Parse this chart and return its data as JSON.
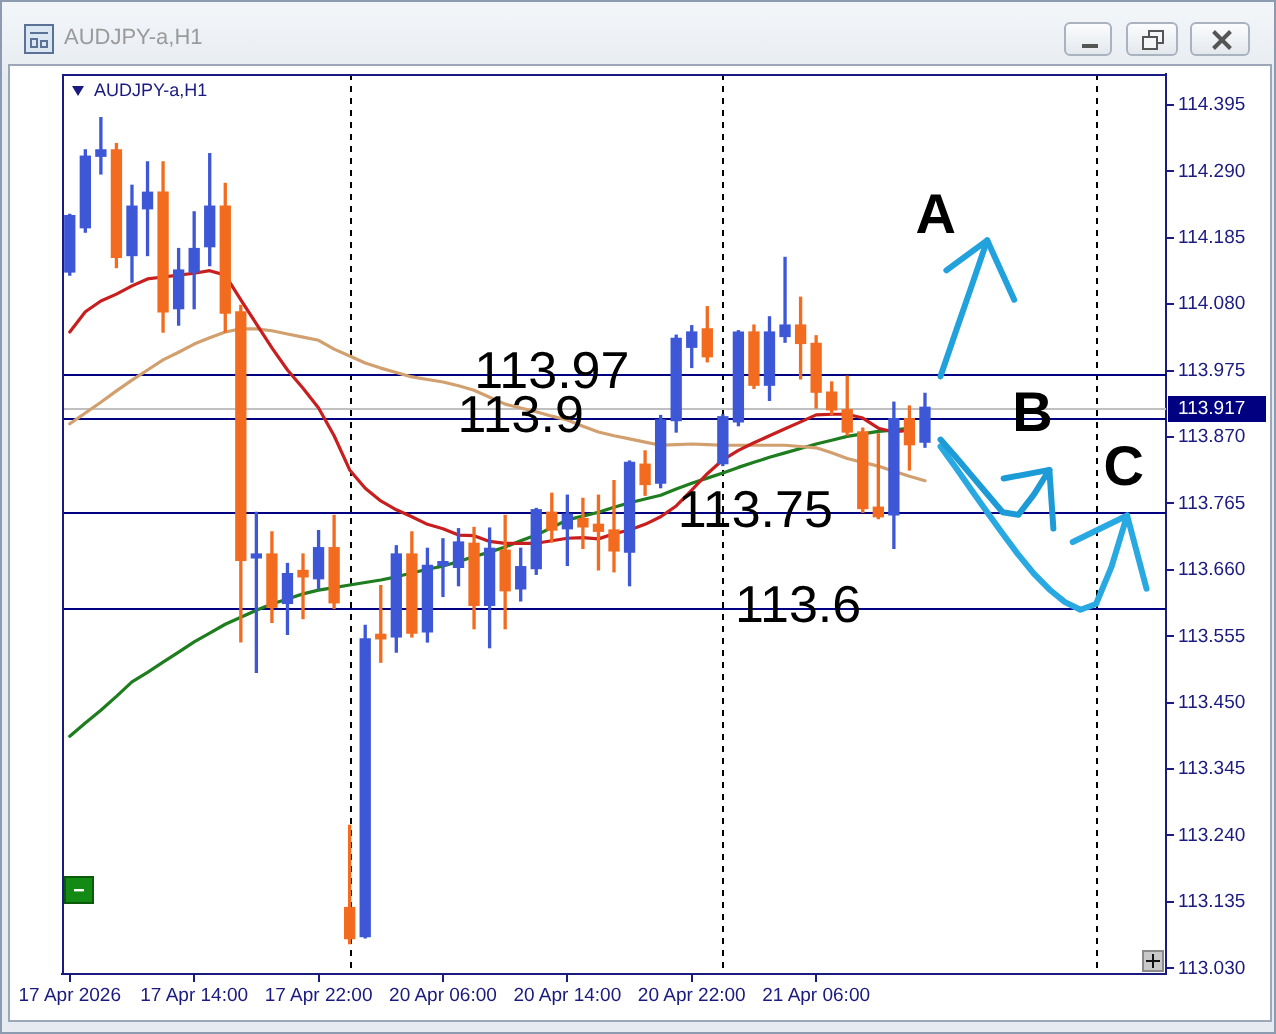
{
  "chart_data": {
    "type": "candlestick",
    "title": "AUDJPY-a,H1",
    "subtitle": "AUDJPY-a,H1",
    "categories": [
      "17 Apr 2026",
      null,
      null,
      null,
      null,
      null,
      null,
      null,
      "17 Apr 14:00",
      null,
      null,
      null,
      null,
      null,
      null,
      null,
      "17 Apr 22:00",
      null,
      null,
      null,
      null,
      null,
      null,
      null,
      "20 Apr 06:00",
      null,
      null,
      null,
      null,
      null,
      null,
      null,
      "20 Apr 14:00",
      null,
      null,
      null,
      null,
      null,
      null,
      null,
      "20 Apr 22:00",
      null,
      null,
      null,
      null,
      null,
      null,
      null,
      "21 Apr 06:00",
      null,
      null,
      null,
      null,
      null,
      null,
      null,
      null,
      null,
      null,
      null,
      null,
      null,
      null,
      null,
      null,
      null,
      null,
      null,
      null,
      null,
      null
    ],
    "ohlc": [
      [
        114.131,
        114.222,
        114.126,
        114.22
      ],
      [
        114.201,
        114.324,
        114.194,
        114.314
      ],
      [
        114.314,
        114.375,
        114.286,
        114.324
      ],
      [
        114.324,
        114.334,
        114.138,
        114.154
      ],
      [
        114.157,
        114.268,
        114.115,
        114.235
      ],
      [
        114.231,
        114.305,
        114.157,
        114.257
      ],
      [
        114.257,
        114.305,
        114.036,
        114.068
      ],
      [
        114.073,
        114.168,
        114.047,
        114.134
      ],
      [
        114.131,
        114.226,
        114.073,
        114.168
      ],
      [
        114.171,
        114.318,
        114.141,
        114.235
      ],
      [
        114.235,
        114.271,
        114.036,
        114.066
      ],
      [
        114.068,
        114.078,
        113.546,
        113.675
      ],
      [
        113.679,
        113.751,
        113.498,
        113.685
      ],
      [
        113.685,
        113.72,
        113.577,
        113.601
      ],
      [
        113.607,
        113.67,
        113.558,
        113.654
      ],
      [
        113.659,
        113.685,
        113.583,
        113.649
      ],
      [
        113.646,
        113.722,
        113.63,
        113.695
      ],
      [
        113.695,
        113.746,
        113.599,
        113.608
      ],
      [
        113.126,
        113.256,
        113.069,
        113.077
      ],
      [
        113.08,
        113.572,
        113.078,
        113.551
      ],
      [
        113.558,
        113.635,
        113.514,
        113.551
      ],
      [
        113.554,
        113.698,
        113.53,
        113.685
      ],
      [
        113.685,
        113.72,
        113.554,
        113.56
      ],
      [
        113.562,
        113.694,
        113.546,
        113.667
      ],
      [
        113.667,
        113.709,
        113.618,
        113.673
      ],
      [
        113.664,
        113.725,
        113.635,
        113.704
      ],
      [
        113.702,
        113.727,
        113.567,
        113.604
      ],
      [
        113.604,
        113.726,
        113.537,
        113.694
      ],
      [
        113.691,
        113.746,
        113.567,
        113.627
      ],
      [
        113.63,
        113.694,
        113.611,
        113.665
      ],
      [
        113.662,
        113.757,
        113.653,
        113.755
      ],
      [
        113.751,
        113.781,
        113.704,
        113.723
      ],
      [
        113.725,
        113.778,
        113.667,
        113.748
      ],
      [
        113.741,
        113.773,
        113.694,
        113.728
      ],
      [
        113.732,
        113.778,
        113.66,
        113.721
      ],
      [
        113.723,
        113.801,
        113.657,
        113.69
      ],
      [
        113.688,
        113.832,
        113.635,
        113.83
      ],
      [
        113.827,
        113.848,
        113.778,
        113.795
      ],
      [
        113.797,
        113.904,
        113.79,
        113.897
      ],
      [
        113.896,
        114.031,
        113.878,
        114.026
      ],
      [
        114.012,
        114.046,
        113.98,
        114.036
      ],
      [
        114.041,
        114.076,
        113.989,
        113.997
      ],
      [
        113.828,
        113.905,
        113.825,
        113.902
      ],
      [
        113.894,
        114.038,
        113.888,
        114.036
      ],
      [
        114.036,
        114.047,
        113.947,
        113.952
      ],
      [
        113.952,
        114.06,
        113.928,
        114.036
      ],
      [
        114.029,
        114.154,
        114.02,
        114.047
      ],
      [
        114.047,
        114.091,
        113.962,
        114.018
      ],
      [
        114.018,
        114.03,
        113.916,
        113.941
      ],
      [
        113.941,
        113.957,
        113.906,
        113.913
      ],
      [
        113.913,
        113.966,
        113.873,
        113.878
      ],
      [
        113.878,
        113.884,
        113.751,
        113.757
      ],
      [
        113.759,
        113.875,
        113.741,
        113.744
      ],
      [
        113.747,
        113.925,
        113.694,
        113.899
      ],
      [
        113.899,
        113.919,
        113.818,
        113.858
      ],
      [
        113.862,
        113.939,
        113.854,
        113.917
      ],
      null,
      null,
      null,
      null,
      null,
      null,
      null,
      null,
      null,
      null,
      null,
      null,
      null,
      null,
      null
    ],
    "colors": [
      "#3d57d6",
      "#3d57d6",
      "#3d57d6",
      "#f26b1e",
      "#3d57d6",
      "#3d57d6",
      "#f26b1e",
      "#3d57d6",
      "#3d57d6",
      "#3d57d6",
      "#f26b1e",
      "#f26b1e",
      "#3d57d6",
      "#f26b1e",
      "#3d57d6",
      "#f26b1e",
      "#3d57d6",
      "#f26b1e",
      "#f26b1e",
      "#3d57d6",
      "#f26b1e",
      "#3d57d6",
      "#f26b1e",
      "#3d57d6",
      "#3d57d6",
      "#3d57d6",
      "#f26b1e",
      "#3d57d6",
      "#f26b1e",
      "#3d57d6",
      "#3d57d6",
      "#f26b1e",
      "#3d57d6",
      "#f26b1e",
      "#f26b1e",
      "#f26b1e",
      "#3d57d6",
      "#f26b1e",
      "#3d57d6",
      "#3d57d6",
      "#3d57d6",
      "#f26b1e",
      "#3d57d6",
      "#3d57d6",
      "#f26b1e",
      "#3d57d6",
      "#3d57d6",
      "#f26b1e",
      "#f26b1e",
      "#f26b1e",
      "#f26b1e",
      "#f26b1e",
      "#f26b1e",
      "#3d57d6",
      "#f26b1e",
      "#3d57d6",
      null,
      null,
      null,
      null,
      null,
      null,
      null,
      null,
      null,
      null,
      null,
      null,
      null,
      null,
      null
    ],
    "series": [
      {
        "type": "line",
        "color": "#c81e1e",
        "values": [
          114.036,
          114.068,
          114.085,
          114.096,
          114.109,
          114.12,
          114.123,
          114.126,
          114.129,
          114.133,
          114.126,
          114.087,
          114.049,
          114.011,
          113.976,
          113.947,
          113.916,
          113.872,
          113.818,
          113.789,
          113.769,
          113.755,
          113.744,
          113.732,
          113.725,
          113.715,
          113.714,
          113.705,
          113.702,
          113.702,
          113.702,
          113.706,
          113.71,
          113.711,
          113.709,
          113.717,
          113.723,
          113.732,
          113.744,
          113.761,
          113.786,
          113.812,
          113.834,
          113.849,
          113.861,
          113.872,
          113.883,
          113.894,
          113.905,
          113.906,
          113.906,
          113.9,
          113.884,
          113.878,
          113.881,
          null,
          null,
          null,
          null,
          null,
          null,
          null,
          null,
          null,
          null,
          null,
          null,
          null,
          null,
          null,
          null
        ]
      },
      {
        "type": "line",
        "color": "#d2a06e",
        "values": [
          113.891,
          113.908,
          113.925,
          113.943,
          113.96,
          113.976,
          113.992,
          114.004,
          114.017,
          114.027,
          114.036,
          114.041,
          114.041,
          114.038,
          114.033,
          114.028,
          114.023,
          114.009,
          113.998,
          113.987,
          113.979,
          113.972,
          113.965,
          113.961,
          113.957,
          113.951,
          113.944,
          113.933,
          113.922,
          113.916,
          113.91,
          113.903,
          113.897,
          113.887,
          113.878,
          113.872,
          113.867,
          113.862,
          113.857,
          113.858,
          113.859,
          113.858,
          113.857,
          113.857,
          113.857,
          113.857,
          113.857,
          113.855,
          113.853,
          113.845,
          113.836,
          113.83,
          113.824,
          113.816,
          113.808,
          113.801,
          null,
          null,
          null,
          null,
          null,
          null,
          null,
          null,
          null,
          null,
          null,
          null,
          null,
          null,
          null
        ]
      },
      {
        "type": "line",
        "color": "#1e7d1e",
        "values": [
          113.397,
          113.418,
          113.438,
          113.46,
          113.483,
          113.498,
          113.514,
          113.53,
          113.546,
          113.56,
          113.574,
          113.585,
          113.596,
          113.606,
          113.614,
          113.622,
          113.628,
          113.632,
          113.636,
          113.64,
          113.644,
          113.649,
          113.655,
          113.661,
          113.666,
          113.673,
          113.681,
          113.688,
          113.696,
          113.706,
          113.715,
          113.727,
          113.739,
          113.745,
          113.751,
          113.759,
          113.766,
          113.772,
          113.778,
          113.788,
          113.797,
          113.805,
          113.813,
          113.822,
          113.83,
          113.838,
          113.845,
          113.852,
          113.859,
          113.865,
          113.871,
          113.875,
          113.879,
          113.881,
          113.884,
          null,
          null,
          null,
          null,
          null,
          null,
          null,
          null,
          null,
          null,
          null,
          null,
          null,
          null,
          null,
          null
        ]
      },
      {
        "type": "line",
        "name": "A",
        "color": "#22a2dc",
        "values": [
          null,
          null,
          null,
          null,
          null,
          null,
          null,
          null,
          null,
          null,
          null,
          null,
          null,
          null,
          null,
          null,
          null,
          null,
          null,
          null,
          null,
          null,
          null,
          null,
          null,
          null,
          null,
          null,
          null,
          null,
          null,
          null,
          null,
          null,
          null,
          null,
          null,
          null,
          null,
          null,
          null,
          null,
          null,
          null,
          null,
          null,
          null,
          null,
          null,
          null,
          null,
          null,
          null,
          null,
          null,
          null,
          113.966,
          114.038,
          114.109,
          114.181,
          null,
          null,
          null,
          null,
          null,
          null,
          null,
          null,
          null,
          null,
          null
        ]
      },
      {
        "type": "line",
        "name": "B",
        "color": "#1d9bd6",
        "values": [
          null,
          null,
          null,
          null,
          null,
          null,
          null,
          null,
          null,
          null,
          null,
          null,
          null,
          null,
          null,
          null,
          null,
          null,
          null,
          null,
          null,
          null,
          null,
          null,
          null,
          null,
          null,
          null,
          null,
          null,
          null,
          null,
          null,
          null,
          null,
          null,
          null,
          null,
          null,
          null,
          null,
          null,
          null,
          null,
          null,
          null,
          null,
          null,
          null,
          null,
          null,
          null,
          null,
          null,
          null,
          null,
          113.866,
          113.838,
          113.809,
          113.78,
          113.751,
          113.747,
          113.779,
          113.818,
          null,
          null,
          null,
          null,
          null,
          null,
          null
        ]
      },
      {
        "type": "line",
        "name": "C",
        "color": "#29a9e2",
        "values": [
          null,
          null,
          null,
          null,
          null,
          null,
          null,
          null,
          null,
          null,
          null,
          null,
          null,
          null,
          null,
          null,
          null,
          null,
          null,
          null,
          null,
          null,
          null,
          null,
          null,
          null,
          null,
          null,
          null,
          null,
          null,
          null,
          null,
          null,
          null,
          null,
          null,
          null,
          null,
          null,
          null,
          null,
          null,
          null,
          null,
          null,
          null,
          null,
          null,
          null,
          null,
          null,
          null,
          null,
          null,
          null,
          113.855,
          113.821,
          113.786,
          113.751,
          113.717,
          113.684,
          113.654,
          113.629,
          113.609,
          113.597,
          113.606,
          113.665,
          113.746,
          null,
          null
        ]
      }
    ],
    "ylim": [
      113.021,
      114.444
    ],
    "yticks": [
      114.395,
      {
        "value": 114.29,
        "label": "114.290"
      },
      114.185,
      {
        "value": 114.08,
        "label": "114.080"
      },
      113.975,
      {
        "value": 113.87,
        "label": "113.870"
      },
      113.765,
      {
        "value": 113.66,
        "label": "113.660"
      },
      113.555,
      {
        "value": 113.45,
        "label": "113.450"
      },
      113.345,
      {
        "value": 113.24,
        "label": "113.240"
      },
      113.135,
      {
        "value": 113.03,
        "label": "113.030"
      }
    ],
    "grid": "x",
    "ref_lines": [
      {
        "axis": "y",
        "value": 113.97,
        "label": "113.97",
        "color": "#000080"
      },
      {
        "axis": "y",
        "value": 113.9,
        "label": "113.9",
        "color": "#000080"
      },
      {
        "axis": "y",
        "value": 113.75,
        "label": "113.75",
        "color": "#000080"
      },
      {
        "axis": "y",
        "value": 113.6,
        "label": "113.6",
        "color": "#000080"
      },
      {
        "axis": "y",
        "value": 113.917,
        "label": "113.917",
        "color": "#c0c0c0"
      }
    ]
  }
}
